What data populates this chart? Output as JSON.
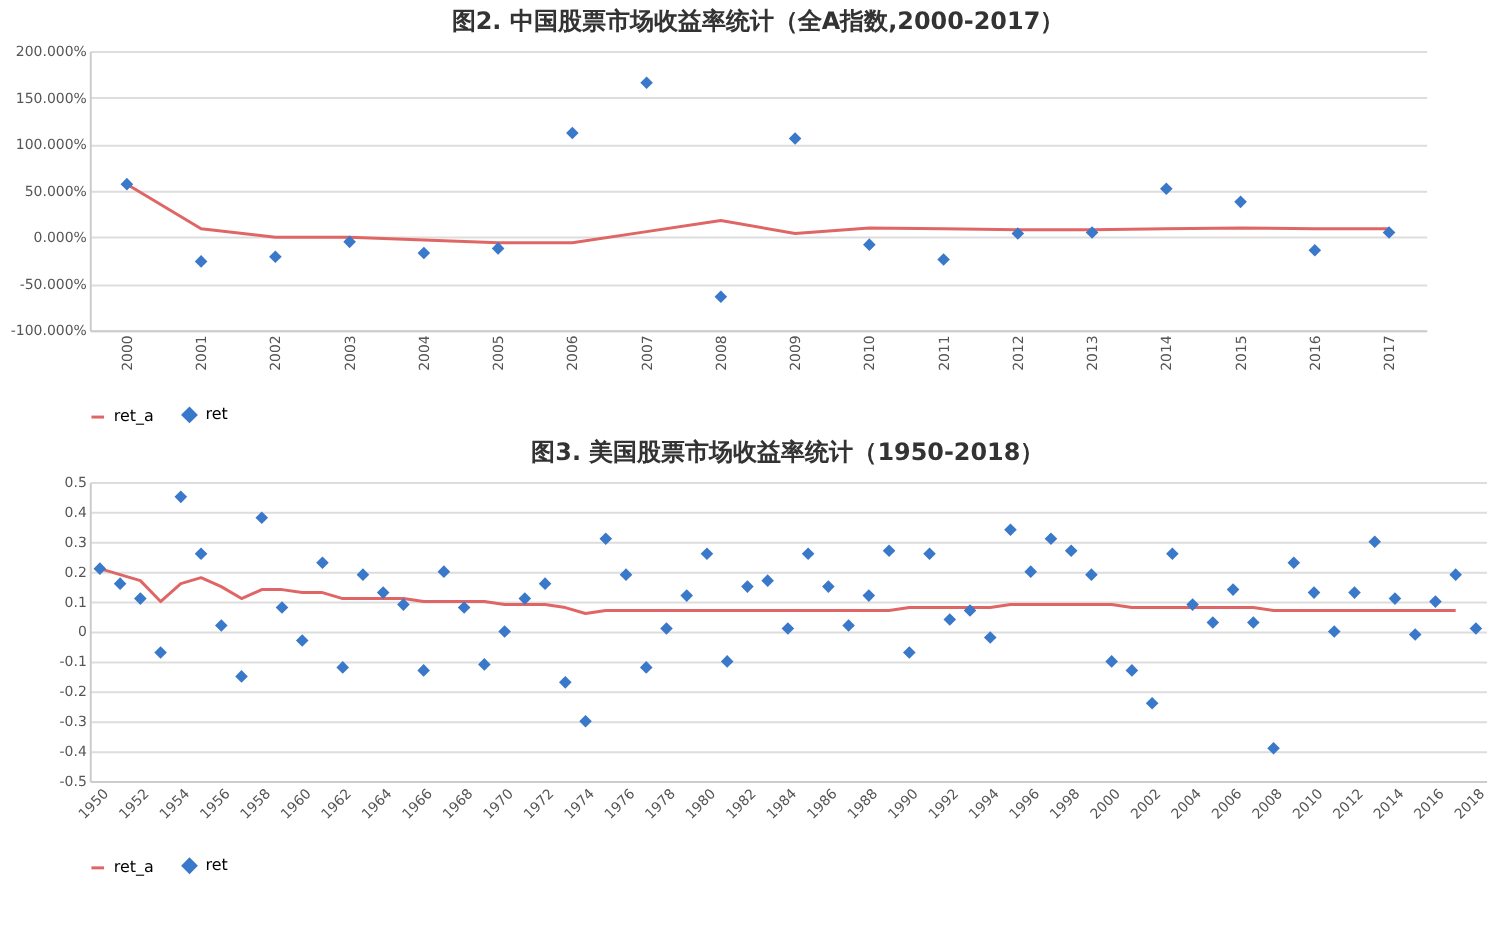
{
  "chart_data": [
    {
      "type": "line",
      "title": "图2. 中国股票市场收益率统计（全A指数,2000-2017）",
      "categories": [
        "2000",
        "2001",
        "2002",
        "2003",
        "2004",
        "2005",
        "2006",
        "2007",
        "2008",
        "2009",
        "2010",
        "2011",
        "2012",
        "2013",
        "2014",
        "2015",
        "2016",
        "2017"
      ],
      "series": [
        {
          "name": "ret_a",
          "color": "#e06666",
          "marker": "none",
          "values": [
            57,
            9,
            0,
            0,
            -3,
            -6,
            -6,
            6,
            18,
            4,
            10,
            9,
            8,
            8,
            9,
            10,
            9,
            9
          ]
        },
        {
          "name": "ret",
          "type": "scatter",
          "color": "#3a78c9",
          "marker": "diamond",
          "values": [
            57,
            -26,
            -21,
            -5,
            -17,
            -12,
            112,
            166,
            -64,
            106,
            -8,
            -24,
            4,
            5,
            52,
            38,
            -14,
            5
          ]
        }
      ],
      "ylim": [
        -100,
        200
      ],
      "yticks": [
        {
          "value": -100,
          "label": "-100.000%"
        },
        {
          "value": -50,
          "label": "-50.000%"
        },
        {
          "value": 0,
          "label": "0.000%"
        },
        {
          "value": 50,
          "label": "50.000%"
        },
        {
          "value": 100,
          "label": "100.000%"
        },
        {
          "value": 150,
          "label": "150.000%"
        },
        {
          "value": 200,
          "label": "200.000%"
        }
      ],
      "grid": "y",
      "legend": "bottom"
    },
    {
      "type": "line",
      "title": "图3. 美国股票市场收益率统计（1950-2018）",
      "categories": [
        "1950",
        null,
        "1952",
        null,
        "1954",
        null,
        "1956",
        null,
        "1958",
        null,
        "1960",
        null,
        "1962",
        null,
        "1964",
        null,
        "1966",
        null,
        "1968",
        null,
        "1970",
        null,
        "1972",
        null,
        "1974",
        null,
        "1976",
        null,
        "1978",
        null,
        "1980",
        null,
        "1982",
        null,
        "1984",
        null,
        "1986",
        null,
        "1988",
        null,
        "1990",
        null,
        "1992",
        null,
        "1994",
        null,
        "1996",
        null,
        "1998",
        null,
        "2000",
        null,
        "2002",
        null,
        "2004",
        null,
        "2006",
        null,
        "2008",
        null,
        "2010",
        null,
        "2012",
        null,
        "2014",
        null,
        "2016",
        null,
        "2018"
      ],
      "series": [
        {
          "name": "ret_a",
          "color": "#e06666",
          "marker": "none",
          "values": [
            0.21,
            0.19,
            0.17,
            0.1,
            0.16,
            0.18,
            0.15,
            0.11,
            0.14,
            0.14,
            0.13,
            0.13,
            0.11,
            0.11,
            0.11,
            0.11,
            0.1,
            0.1,
            0.1,
            0.1,
            0.09,
            0.09,
            0.09,
            0.08,
            0.06,
            0.07,
            0.07,
            0.07,
            0.07,
            0.07,
            0.07,
            0.07,
            0.07,
            0.07,
            0.07,
            0.07,
            0.07,
            0.07,
            0.07,
            0.07,
            0.08,
            0.08,
            0.08,
            0.08,
            0.08,
            0.09,
            0.09,
            0.09,
            0.09,
            0.09,
            0.09,
            0.08,
            0.08,
            0.08,
            0.08,
            0.08,
            0.08,
            0.08,
            0.07,
            0.07,
            0.07,
            0.07,
            0.07,
            0.07,
            0.07,
            0.07,
            0.07,
            0.07,
            null
          ]
        },
        {
          "name": "ret",
          "type": "scatter",
          "color": "#3a78c9",
          "marker": "diamond",
          "values": [
            0.21,
            0.16,
            0.11,
            -0.07,
            0.45,
            0.26,
            0.02,
            -0.15,
            0.38,
            0.08,
            -0.03,
            0.23,
            -0.12,
            0.19,
            0.13,
            0.09,
            -0.13,
            0.2,
            0.08,
            -0.11,
            0.0,
            0.11,
            0.16,
            -0.17,
            -0.3,
            0.31,
            0.19,
            -0.12,
            0.01,
            0.12,
            0.26,
            -0.1,
            0.15,
            0.17,
            0.01,
            0.26,
            0.15,
            0.02,
            0.12,
            0.27,
            -0.07,
            0.26,
            0.04,
            0.07,
            -0.02,
            0.34,
            0.2,
            0.31,
            0.27,
            0.19,
            -0.1,
            -0.13,
            -0.24,
            0.26,
            0.09,
            0.03,
            0.14,
            0.03,
            -0.39,
            0.23,
            0.13,
            0.0,
            0.13,
            0.3,
            0.11,
            -0.01,
            0.1,
            0.19,
            0.01
          ]
        }
      ],
      "ylim": [
        -0.5,
        0.5
      ],
      "yticks": [
        -0.5,
        -0.4,
        -0.3,
        -0.2,
        -0.1,
        0,
        0.1,
        0.2,
        0.3,
        0.4,
        0.5
      ],
      "grid": "y",
      "legend": "bottom"
    }
  ]
}
